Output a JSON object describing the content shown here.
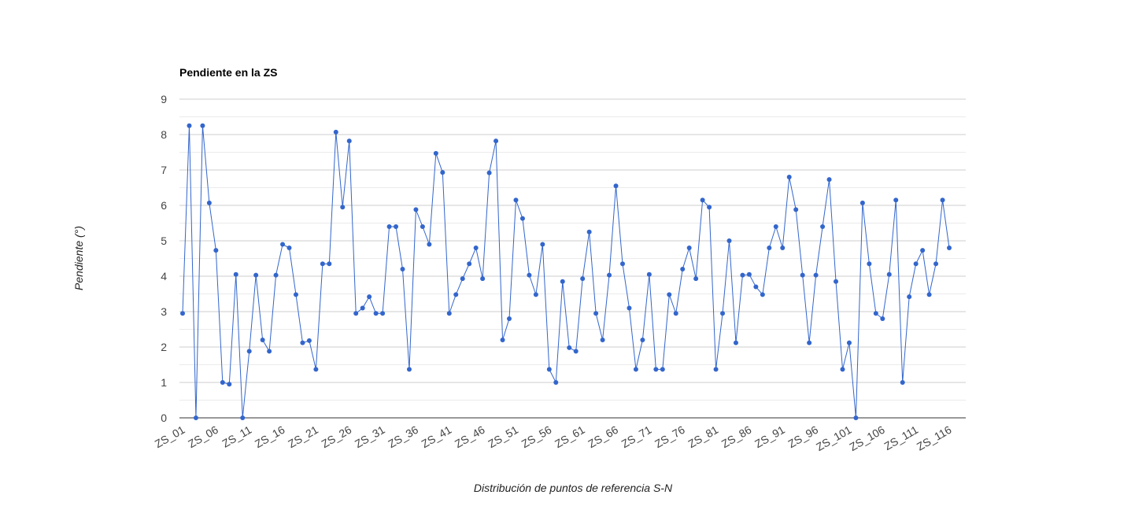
{
  "chart_data": {
    "type": "line",
    "title": "Pendiente en la ZS",
    "x_label": "Distribución de puntos de referencia S-N",
    "y_label": "Pendiente (°)",
    "categories": [
      "ZS_01",
      null,
      null,
      null,
      null,
      "ZS_06",
      null,
      null,
      null,
      null,
      "ZS_11",
      null,
      null,
      null,
      null,
      "ZS_16",
      null,
      null,
      null,
      null,
      "ZS_21",
      null,
      null,
      null,
      null,
      "ZS_26",
      null,
      null,
      null,
      null,
      "ZS_31",
      null,
      null,
      null,
      null,
      "ZS_36",
      null,
      null,
      null,
      null,
      "ZS_41",
      null,
      null,
      null,
      null,
      "ZS_46",
      null,
      null,
      null,
      null,
      "ZS_51",
      null,
      null,
      null,
      null,
      "ZS_56",
      null,
      null,
      null,
      null,
      "ZS_61",
      null,
      null,
      null,
      null,
      "ZS_66",
      null,
      null,
      null,
      null,
      "ZS_71",
      null,
      null,
      null,
      null,
      "ZS_76",
      null,
      null,
      null,
      null,
      "ZS_81",
      null,
      null,
      null,
      null,
      "ZS_86",
      null,
      null,
      null,
      null,
      "ZS_91",
      null,
      null,
      null,
      null,
      "ZS_96",
      null,
      null,
      null,
      null,
      "ZS_101",
      null,
      null,
      null,
      null,
      "ZS_106",
      null,
      null,
      null,
      null,
      "ZS_111",
      null,
      null,
      null,
      null,
      "ZS_116"
    ],
    "values": [
      2.95,
      8.25,
      0,
      8.25,
      6.07,
      4.73,
      1.0,
      0.95,
      4.05,
      0,
      1.88,
      4.03,
      2.2,
      1.88,
      4.03,
      4.9,
      4.8,
      3.48,
      2.12,
      2.18,
      1.37,
      4.35,
      4.35,
      8.07,
      5.95,
      7.82,
      2.95,
      3.1,
      3.42,
      2.95,
      2.95,
      5.4,
      5.4,
      4.2,
      1.37,
      5.88,
      5.4,
      4.9,
      7.47,
      6.93,
      2.95,
      3.48,
      3.93,
      4.35,
      4.8,
      3.93,
      6.92,
      7.82,
      2.2,
      2.8,
      6.15,
      5.63,
      4.03,
      3.48,
      4.9,
      1.37,
      1.0,
      3.85,
      1.98,
      1.88,
      3.93,
      5.25,
      2.95,
      2.2,
      4.03,
      6.55,
      4.35,
      3.1,
      1.37,
      2.2,
      4.05,
      1.37,
      1.37,
      3.48,
      2.95,
      4.2,
      4.8,
      3.93,
      6.15,
      5.95,
      1.37,
      2.95,
      5.0,
      2.12,
      4.03,
      4.05,
      3.7,
      3.48,
      4.8,
      5.4,
      4.8,
      6.8,
      5.88,
      4.03,
      2.12,
      4.03,
      5.4,
      6.73,
      3.85,
      1.37,
      2.12,
      0,
      6.07,
      4.35,
      2.95,
      2.8,
      4.05,
      6.15,
      1.0,
      3.42,
      4.35,
      4.73,
      3.48,
      4.35,
      6.15,
      4.8
    ],
    "color": "#3366cc",
    "ylim": [
      0,
      9
    ],
    "yticks": [
      0,
      1,
      2,
      3,
      4,
      5,
      6,
      7,
      8,
      9
    ],
    "grid": true
  }
}
